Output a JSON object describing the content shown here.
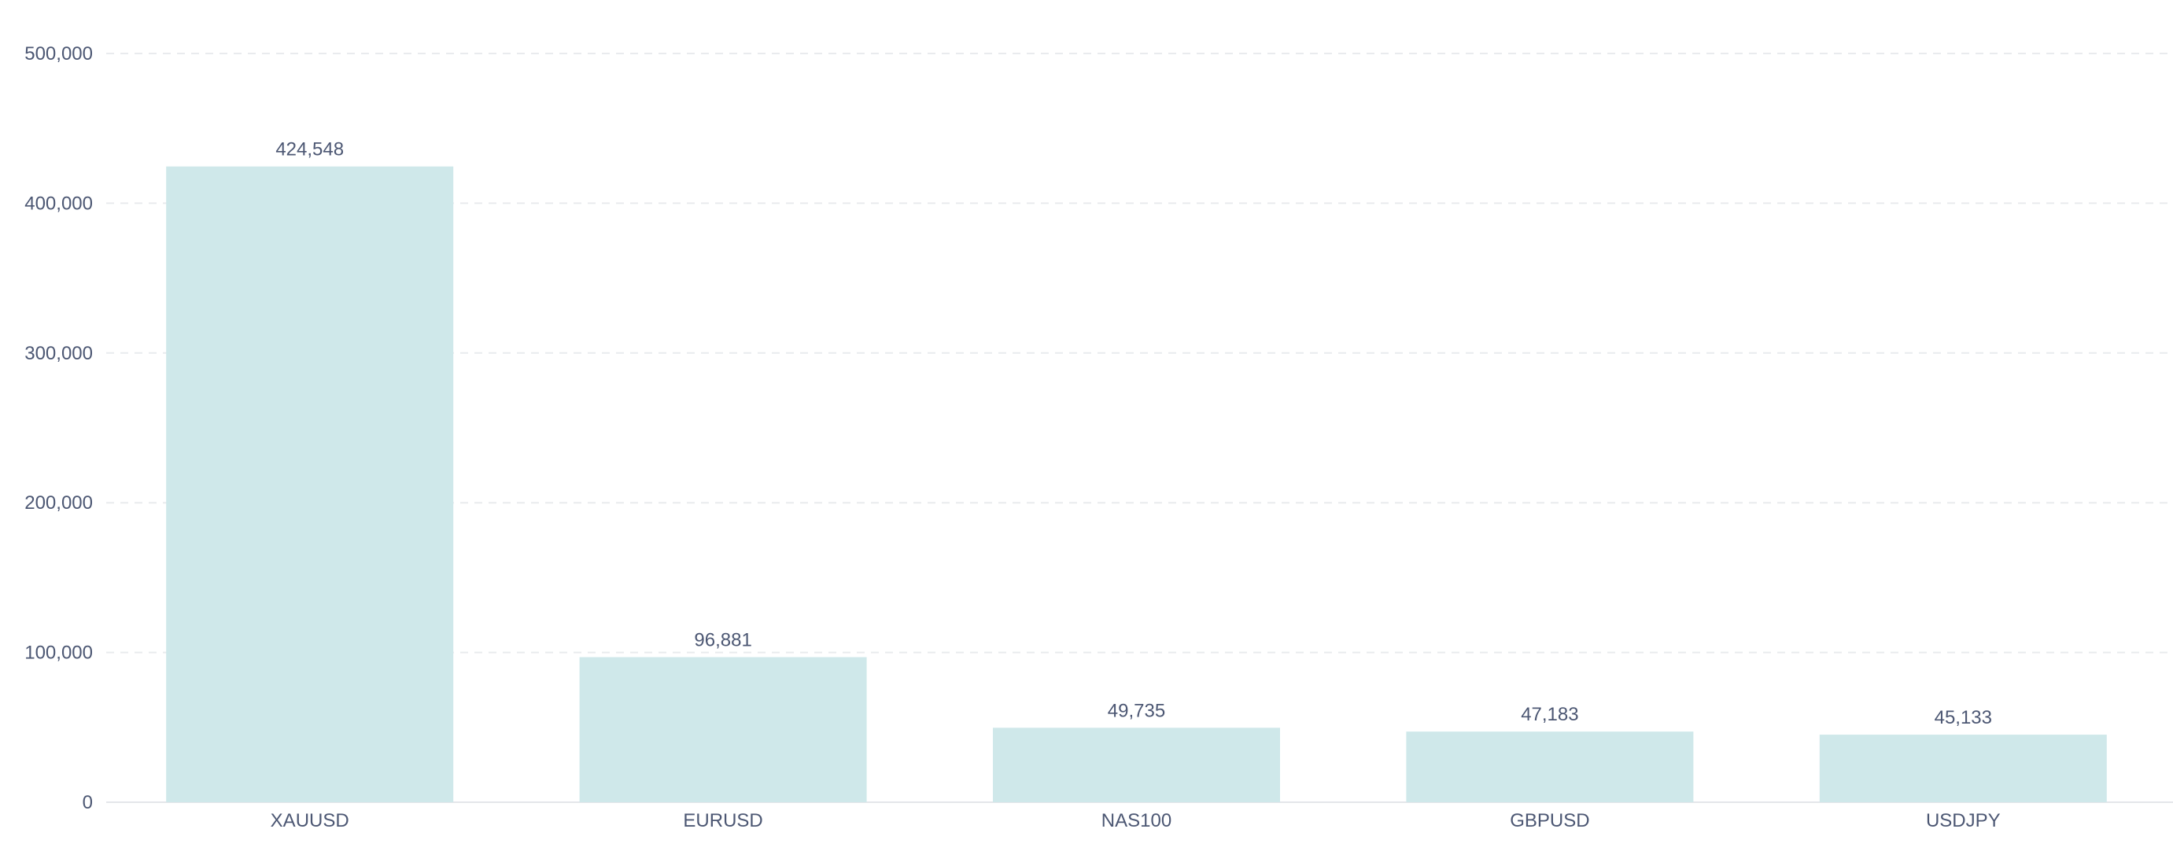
{
  "chart_data": {
    "type": "bar",
    "title": "",
    "xlabel": "",
    "ylabel": "",
    "categories": [
      "XAUUSD",
      "EURUSD",
      "NAS100",
      "GBPUSD",
      "USDJPY"
    ],
    "values": [
      424548,
      96881,
      49735,
      47183,
      45133
    ],
    "value_labels": [
      "424,548",
      "96,881",
      "49,735",
      "47,183",
      "45,133"
    ],
    "ylim": [
      0,
      500000
    ],
    "y_ticks": [
      0,
      100000,
      200000,
      300000,
      400000,
      500000
    ],
    "y_tick_labels": [
      "0",
      "100,000",
      "200,000",
      "300,000",
      "400,000",
      "500,000"
    ],
    "grid": true,
    "legend": "none",
    "bar_color": "#cfe8ea"
  }
}
